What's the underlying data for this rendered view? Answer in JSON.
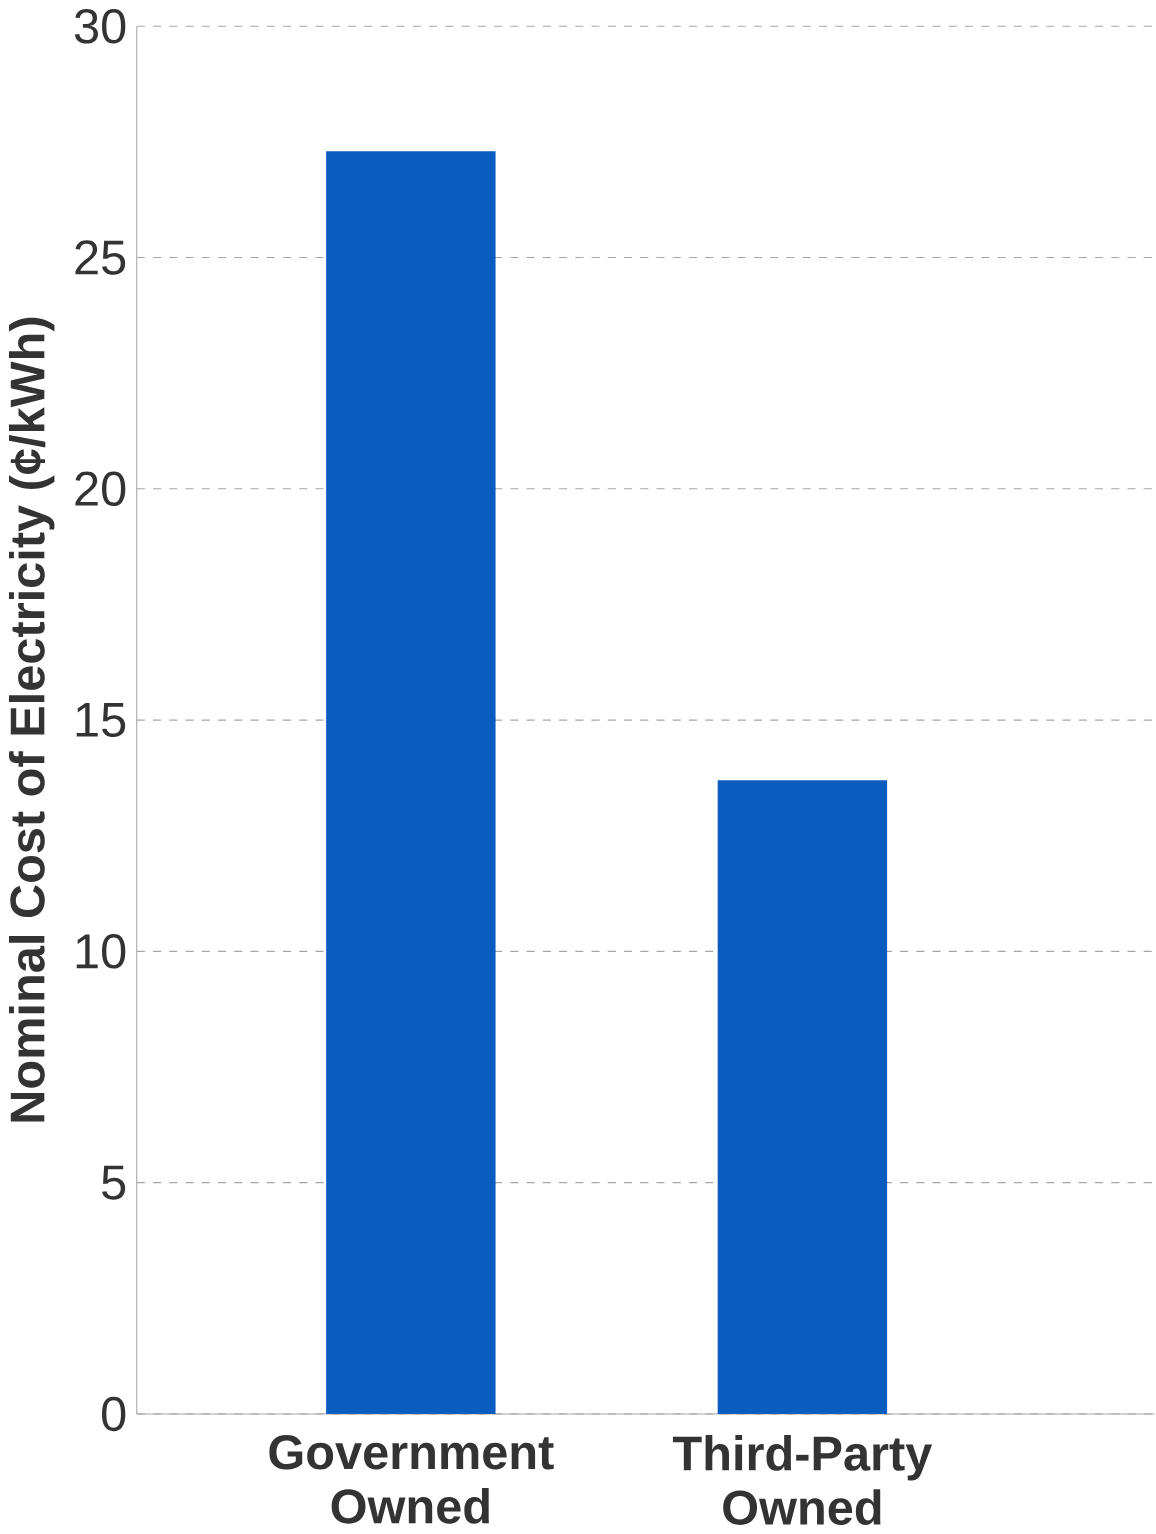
{
  "chart_data": {
    "type": "bar",
    "ylabel": "Nominal Cost of Electricity (¢/kWh)",
    "categories": [
      "Government Owned",
      "Third-Party Owned"
    ],
    "values": [
      27.3,
      13.7
    ],
    "color": "#0a5cbf",
    "ylim": [
      0,
      30
    ],
    "yticks": [
      0,
      5,
      10,
      15,
      20,
      25,
      30
    ],
    "grid": "y"
  }
}
